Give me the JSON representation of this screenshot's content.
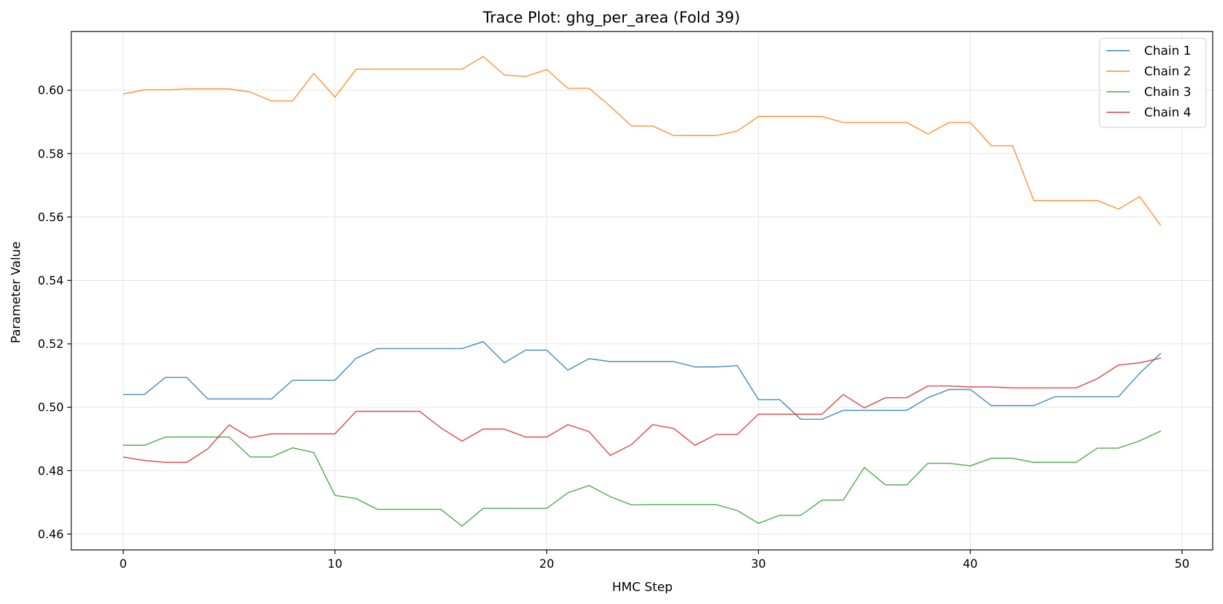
{
  "chart_data": {
    "type": "line",
    "title": "Trace Plot: ghg_per_area (Fold 39)",
    "xlabel": "HMC Step",
    "ylabel": "Parameter Value",
    "xlim": [
      -2.45,
      51.45
    ],
    "ylim": [
      0.455,
      0.6185
    ],
    "xticks": [
      0,
      10,
      20,
      30,
      40,
      50
    ],
    "yticks": [
      0.46,
      0.48,
      0.5,
      0.52,
      0.54,
      0.56,
      0.58,
      0.6
    ],
    "ytick_decimals": 2,
    "grid": true,
    "legend_position": "top-right",
    "x": [
      0,
      1,
      2,
      3,
      4,
      5,
      6,
      7,
      8,
      9,
      10,
      11,
      12,
      13,
      14,
      15,
      16,
      17,
      18,
      19,
      20,
      21,
      22,
      23,
      24,
      25,
      26,
      27,
      28,
      29,
      30,
      31,
      32,
      33,
      34,
      35,
      36,
      37,
      38,
      39,
      40,
      41,
      42,
      43,
      44,
      45,
      46,
      47,
      48,
      49
    ],
    "series": [
      {
        "name": "Chain 1",
        "color": "#1f77b4",
        "values": [
          0.504,
          0.504,
          0.5094,
          0.5094,
          0.5026,
          0.5026,
          0.5026,
          0.5026,
          0.5085,
          0.5085,
          0.5085,
          0.5154,
          0.5185,
          0.5185,
          0.5185,
          0.5185,
          0.5185,
          0.5207,
          0.514,
          0.518,
          0.518,
          0.5117,
          0.5153,
          0.5144,
          0.5144,
          0.5144,
          0.5144,
          0.5127,
          0.5127,
          0.5131,
          0.5024,
          0.5024,
          0.4962,
          0.4962,
          0.499,
          0.499,
          0.499,
          0.499,
          0.503,
          0.5056,
          0.5056,
          0.5005,
          0.5005,
          0.5005,
          0.5033,
          0.5033,
          0.5033,
          0.5033,
          0.5107,
          0.517
        ]
      },
      {
        "name": "Chain 2",
        "color": "#ff7f0e",
        "values": [
          0.5988,
          0.6001,
          0.6001,
          0.6004,
          0.6004,
          0.6004,
          0.5994,
          0.5966,
          0.5966,
          0.6053,
          0.5978,
          0.6066,
          0.6066,
          0.6066,
          0.6066,
          0.6066,
          0.6066,
          0.6106,
          0.6048,
          0.6043,
          0.6065,
          0.6006,
          0.6006,
          0.5949,
          0.5887,
          0.5887,
          0.5857,
          0.5857,
          0.5857,
          0.5871,
          0.5917,
          0.5917,
          0.5917,
          0.5917,
          0.5898,
          0.5898,
          0.5898,
          0.5898,
          0.5862,
          0.5898,
          0.5898,
          0.5825,
          0.5825,
          0.5652,
          0.5652,
          0.5652,
          0.5652,
          0.5625,
          0.5664,
          0.5573
        ]
      },
      {
        "name": "Chain 3",
        "color": "#2ca02c",
        "values": [
          0.488,
          0.488,
          0.4906,
          0.4906,
          0.4906,
          0.4906,
          0.4843,
          0.4843,
          0.4872,
          0.4857,
          0.4722,
          0.4712,
          0.4678,
          0.4678,
          0.4678,
          0.4678,
          0.4625,
          0.4681,
          0.4681,
          0.4681,
          0.4681,
          0.473,
          0.4753,
          0.4718,
          0.4692,
          0.4693,
          0.4693,
          0.4693,
          0.4693,
          0.4674,
          0.4634,
          0.4659,
          0.4659,
          0.4707,
          0.4707,
          0.481,
          0.4755,
          0.4755,
          0.4823,
          0.4823,
          0.4815,
          0.4839,
          0.4839,
          0.4826,
          0.4826,
          0.4826,
          0.4871,
          0.4871,
          0.4894,
          0.4925
        ]
      },
      {
        "name": "Chain 4",
        "color": "#d62728",
        "values": [
          0.4843,
          0.4832,
          0.4826,
          0.4826,
          0.4869,
          0.4944,
          0.4904,
          0.4916,
          0.4916,
          0.4916,
          0.4916,
          0.4987,
          0.4987,
          0.4987,
          0.4987,
          0.4935,
          0.4893,
          0.4931,
          0.4931,
          0.4906,
          0.4906,
          0.4945,
          0.4923,
          0.4848,
          0.4882,
          0.4945,
          0.4933,
          0.488,
          0.4914,
          0.4914,
          0.4978,
          0.4978,
          0.4978,
          0.4978,
          0.504,
          0.4998,
          0.503,
          0.503,
          0.5067,
          0.5067,
          0.5064,
          0.5064,
          0.5061,
          0.5061,
          0.5061,
          0.5061,
          0.509,
          0.5133,
          0.514,
          0.5155
        ]
      }
    ]
  }
}
